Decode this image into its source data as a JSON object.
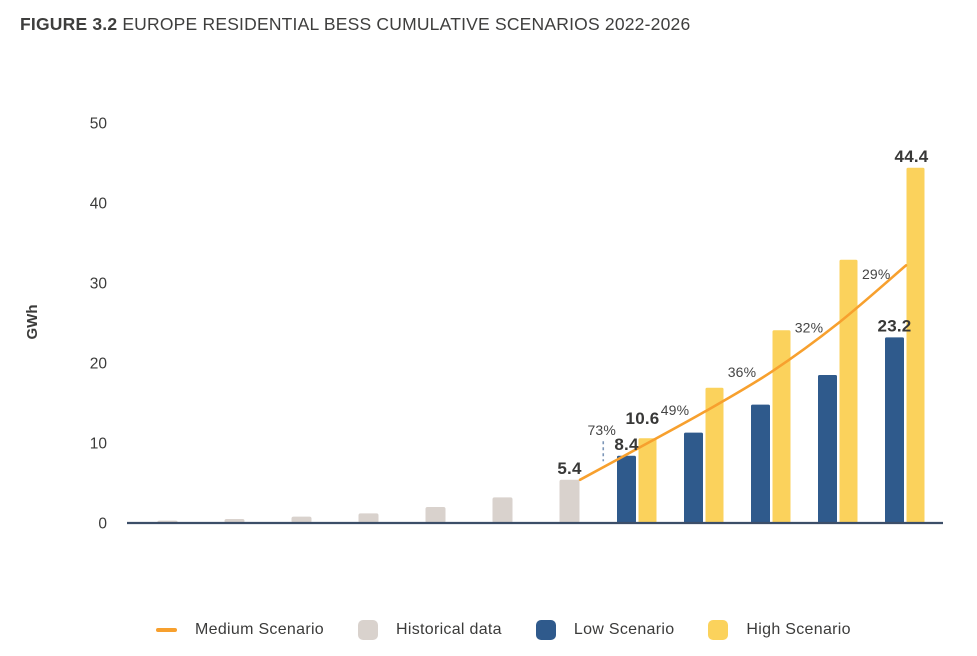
{
  "title": {
    "figure_label": "FIGURE 3.2",
    "text": "EUROPE RESIDENTIAL BESS CUMULATIVE SCENARIOS 2022-2026"
  },
  "colors": {
    "historical": "#D9D2CD",
    "low": "#2F5A8C",
    "high": "#FBD25C",
    "medium": "#F7A02E",
    "axis": "#3C4E68",
    "dashed": "#7C96B7"
  },
  "chart_data": {
    "type": "bar+line",
    "title": "FIGURE 3.2 EUROPE RESIDENTIAL BESS CUMULATIVE SCENARIOS 2022-2026",
    "ylabel": "GWh",
    "ylim": [
      0,
      50
    ],
    "yticks": [
      0,
      10,
      20,
      30,
      40,
      50
    ],
    "grid": "off",
    "legend_position": "bottom",
    "series": [
      {
        "name": "Historical data",
        "type": "bar",
        "color_key": "historical",
        "values": [
          0.3,
          0.5,
          0.8,
          1.2,
          2.0,
          3.2,
          5.4
        ]
      },
      {
        "name": "Low Scenario",
        "type": "bar",
        "color_key": "low",
        "values": [
          8.4,
          11.3,
          14.8,
          18.5,
          23.2
        ]
      },
      {
        "name": "High Scenario",
        "type": "bar",
        "color_key": "high",
        "values": [
          10.6,
          16.9,
          24.1,
          32.9,
          44.4
        ]
      },
      {
        "name": "Medium Scenario",
        "type": "line",
        "color_key": "medium",
        "values": [
          5.4,
          9.3,
          13.9,
          18.9,
          25.0,
          32.2
        ]
      }
    ],
    "value_labels": [
      {
        "text": "5.4",
        "series": "historical",
        "index": 6
      },
      {
        "text": "8.4",
        "series": "low",
        "index": 0
      },
      {
        "text": "10.6",
        "series": "high",
        "index": 0
      },
      {
        "text": "23.2",
        "series": "low",
        "index": 4
      },
      {
        "text": "44.4",
        "series": "high",
        "index": 4
      }
    ],
    "growth_labels": [
      "73%",
      "49%",
      "36%",
      "32%",
      "29%"
    ]
  },
  "legend": [
    {
      "label": "Medium Scenario",
      "swatch": "line",
      "color_key": "medium"
    },
    {
      "label": "Historical data",
      "swatch": "square",
      "color_key": "historical"
    },
    {
      "label": "Low Scenario",
      "swatch": "square",
      "color_key": "low"
    },
    {
      "label": "High Scenario",
      "swatch": "square",
      "color_key": "high"
    }
  ]
}
